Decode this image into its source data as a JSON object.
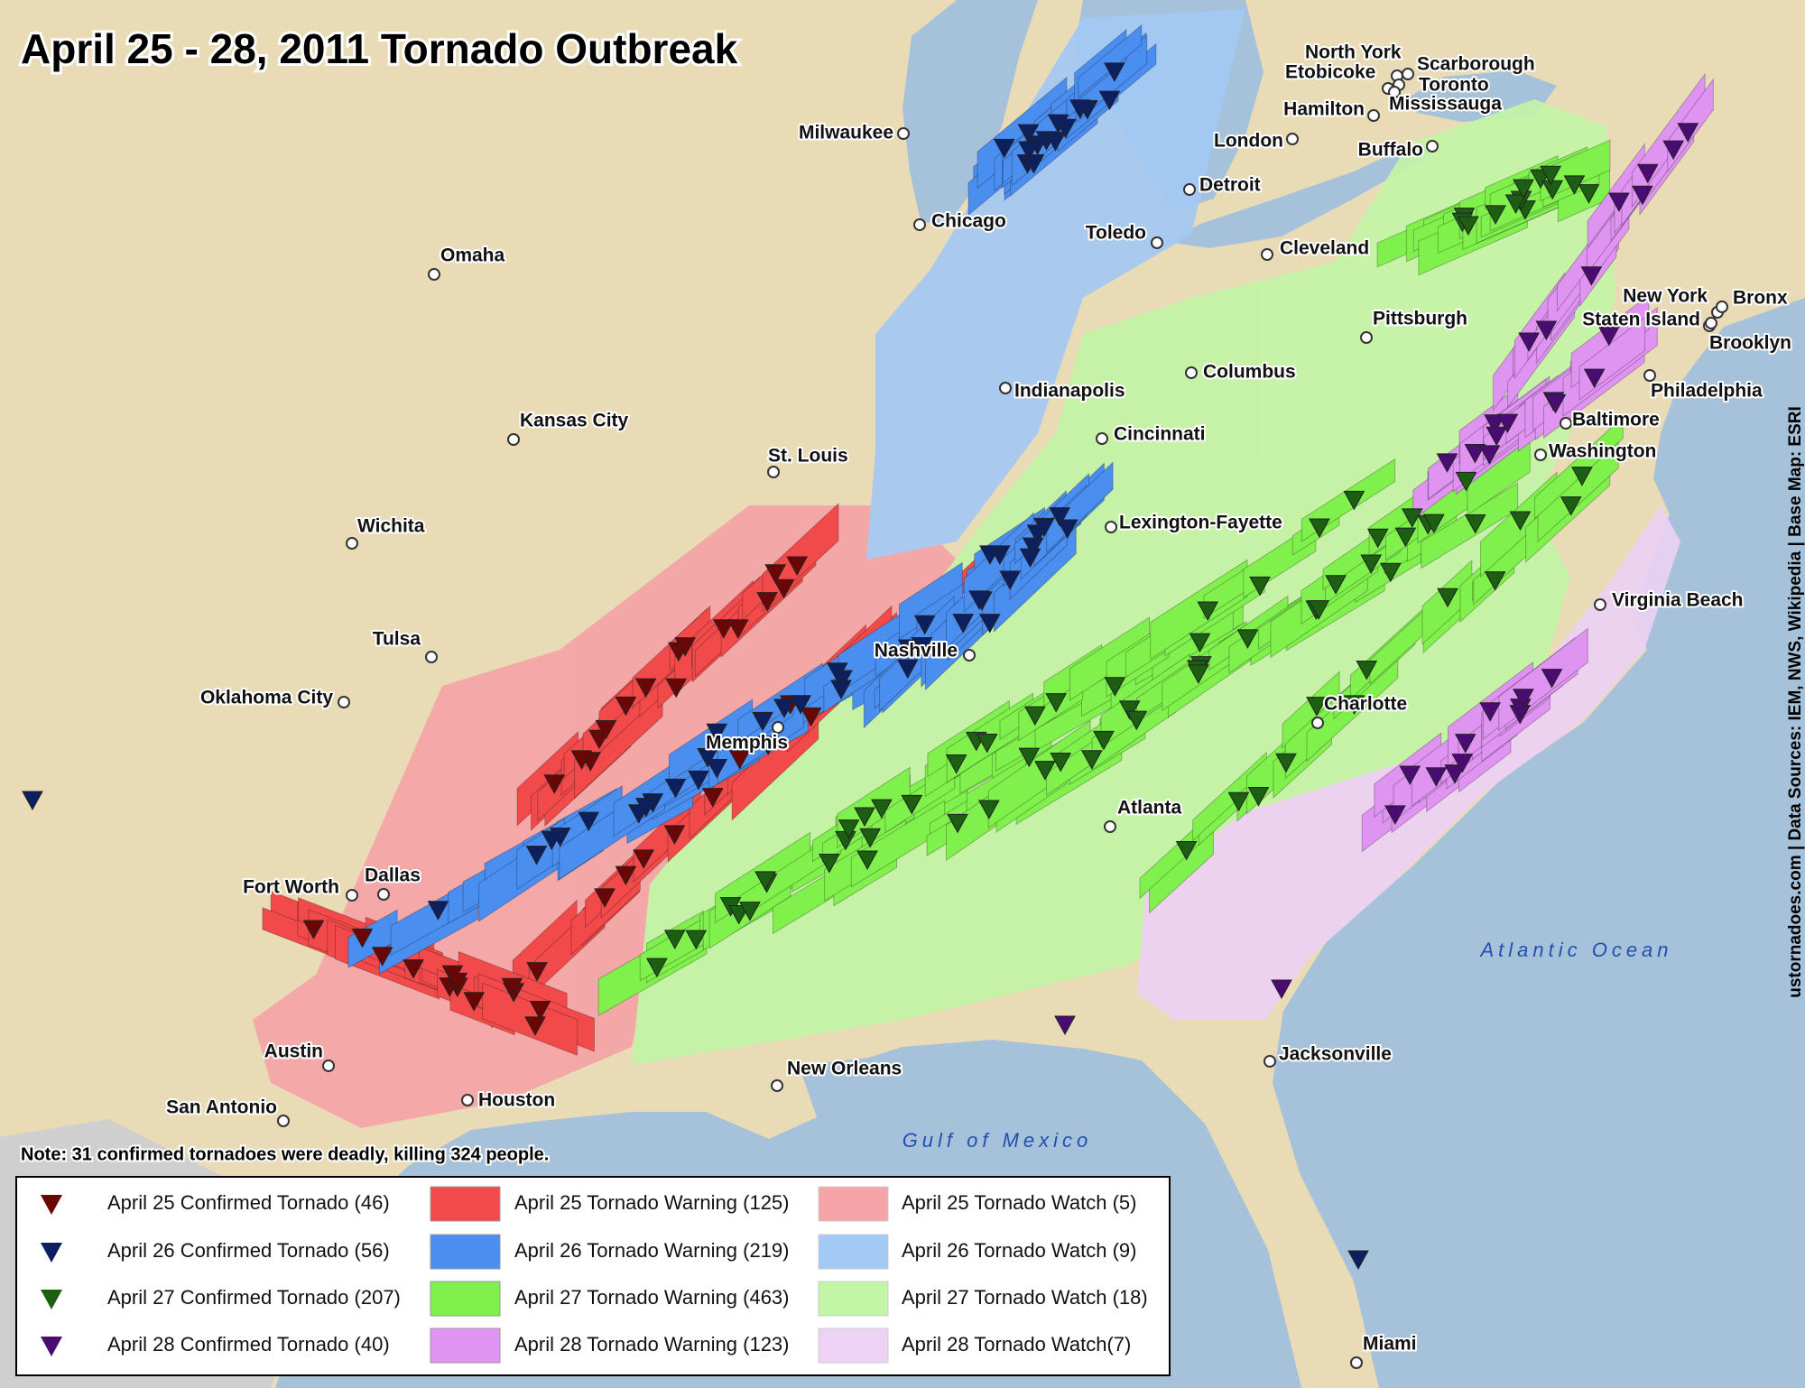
{
  "title": "April 25 - 28, 2011 Tornado Outbreak",
  "note": "Note: 31 confirmed tornadoes were deadly, killing 324 people.",
  "credit": "ustornadoes.com | Data Sources: IEM, NWS, Wikipedia | Base Map: ESRI",
  "water": [
    "Atlantic Ocean",
    "Gulf of Mexico"
  ],
  "cities": [
    "Milwaukee",
    "Chicago",
    "Omaha",
    "Kansas City",
    "St. Louis",
    "Wichita",
    "Tulsa",
    "Oklahoma City",
    "Fort Worth",
    "Dallas",
    "Austin",
    "San Antonio",
    "Houston",
    "New Orleans",
    "Memphis",
    "Nashville",
    "Indianapolis",
    "Cincinnati",
    "Columbus",
    "Lexington-Fayette",
    "Toledo",
    "Detroit",
    "Cleveland",
    "London",
    "Buffalo",
    "Hamilton",
    "North York",
    "Etobicoke",
    "Scarborough",
    "Toronto",
    "Mississauga",
    "Pittsburgh",
    "Philadelphia",
    "Baltimore",
    "Washington",
    "New York",
    "Bronx",
    "Staten Island",
    "Brooklyn",
    "Virginia Beach",
    "Charlotte",
    "Atlanta",
    "Jacksonville",
    "Miami"
  ],
  "legend": {
    "tornadoes": [
      {
        "label": "April 25 Confirmed Tornado (46)",
        "color": "#6b0606"
      },
      {
        "label": "April 26 Confirmed Tornado (56)",
        "color": "#0c1f5e"
      },
      {
        "label": "April 27 Confirmed Tornado (207)",
        "color": "#1c5e12"
      },
      {
        "label": "April 28 Confirmed Tornado (40)",
        "color": "#4a0c72"
      }
    ],
    "warnings": [
      {
        "label": "April 25 Tornado Warning (125)",
        "color": "#f24a4a"
      },
      {
        "label": "April 26 Tornado Warning (219)",
        "color": "#4a8ef0"
      },
      {
        "label": "April 27 Tornado Warning (463)",
        "color": "#80f04c"
      },
      {
        "label": "April 28 Tornado Warning (123)",
        "color": "#e094f2"
      }
    ],
    "watches": [
      {
        "label": "April 25 Tornado Watch (5)",
        "color": "#f5a3a6"
      },
      {
        "label": "April 26 Tornado Watch (9)",
        "color": "#a3c9f5"
      },
      {
        "label": "April 27 Tornado Watch (18)",
        "color": "#c3f5a6"
      },
      {
        "label": "April 28 Tornado Watch(7)",
        "color": "#edd2f5"
      }
    ]
  }
}
